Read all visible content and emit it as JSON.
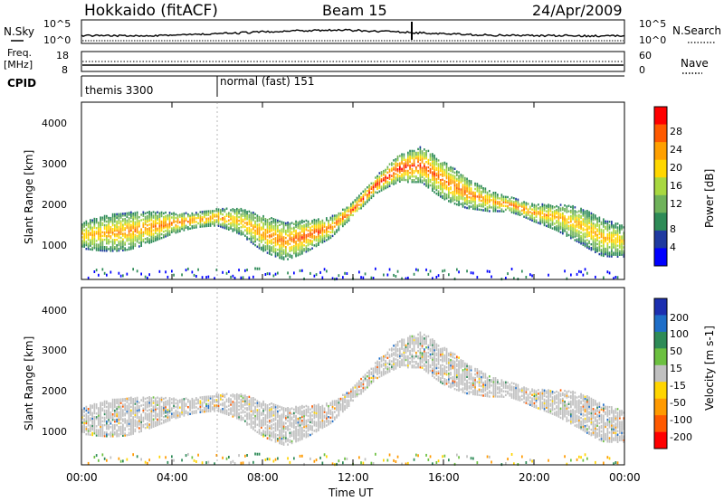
{
  "header": {
    "title": "Hokkaido (fitACF)",
    "beam": "Beam 15",
    "date": "24/Apr/2009"
  },
  "top_panel": {
    "nsky_label": "N.Sky",
    "nsearch_label": "N.Search",
    "count_ticks": [
      "10^5",
      "10^0"
    ],
    "freq_label_1": "Freq.",
    "freq_label_2": "[MHz]",
    "freq_ticks": [
      "18",
      "8"
    ],
    "nave_label": "Nave",
    "nave_ticks": [
      "60",
      "0"
    ],
    "cpid_label": "CPID",
    "cpid_segments": [
      {
        "label": "themis 3300",
        "start_hour": 0,
        "end_hour": 6
      },
      {
        "label": "normal (fast) 151",
        "start_hour": 6,
        "end_hour": 24
      }
    ]
  },
  "x_axis": {
    "label": "Time UT",
    "tick_labels": [
      "00:00",
      "04:00",
      "08:00",
      "12:00",
      "16:00",
      "20:00",
      "00:00"
    ],
    "tick_hours": [
      0,
      4,
      8,
      12,
      16,
      20,
      24
    ],
    "range_hours": [
      0,
      24
    ]
  },
  "y_axis": {
    "label": "Slant Range [km]",
    "tick_labels": [
      "1000",
      "2000",
      "3000",
      "4000"
    ],
    "range_km": [
      180,
      4550
    ]
  },
  "power_colorbar": {
    "label": "Power [dB]",
    "ticks": [
      "28",
      "24",
      "20",
      "16",
      "12",
      "8",
      "4"
    ],
    "colors": [
      "#0000ff",
      "#1f3aa0",
      "#2e8b57",
      "#6fb25a",
      "#a8d840",
      "#ffd700",
      "#ffa000",
      "#ff5a00",
      "#ff0000"
    ]
  },
  "velocity_colorbar": {
    "label": "Velocity [m s-1]",
    "ticks": [
      "200",
      "100",
      "50",
      "15",
      "-15",
      "-50",
      "-100",
      "-200"
    ],
    "colors": [
      "#1c2fb0",
      "#1e6ec8",
      "#2e8b57",
      "#6cc040",
      "#c0c0c0",
      "#ffd500",
      "#ff9a00",
      "#ff5a00",
      "#ff0000"
    ]
  },
  "chart_data": {
    "type": "heatmap",
    "title": "Hokkaido (fitACF) Beam 15 24/Apr/2009",
    "xlabel": "Time UT",
    "ylabel": "Slant Range [km]",
    "xlim_hours": [
      0,
      24
    ],
    "ylim_km": [
      180,
      4550
    ],
    "panels": [
      "Power [dB]",
      "Velocity [m s-1]"
    ],
    "main_scatter_band": {
      "hours": [
        0,
        2,
        4,
        6,
        7,
        8,
        9,
        10,
        11,
        12,
        13,
        14,
        15,
        16,
        17,
        18,
        19,
        20,
        21,
        22,
        23,
        24
      ],
      "center_km": [
        1250,
        1350,
        1550,
        1700,
        1600,
        1300,
        1100,
        1250,
        1450,
        1900,
        2500,
        2900,
        3000,
        2600,
        2300,
        2100,
        2000,
        1800,
        1700,
        1500,
        1200,
        1100
      ],
      "peak_power_db": [
        22,
        24,
        26,
        24,
        22,
        24,
        26,
        28,
        26,
        28,
        30,
        30,
        28,
        26,
        26,
        24,
        26,
        24,
        22,
        22,
        22,
        20
      ]
    },
    "velocity_dominant_ms": "-15 to 15",
    "sky_noise_counts": "10^0 to 10^5",
    "frequency_mhz": 11,
    "nave_range": [
      0,
      60
    ]
  }
}
